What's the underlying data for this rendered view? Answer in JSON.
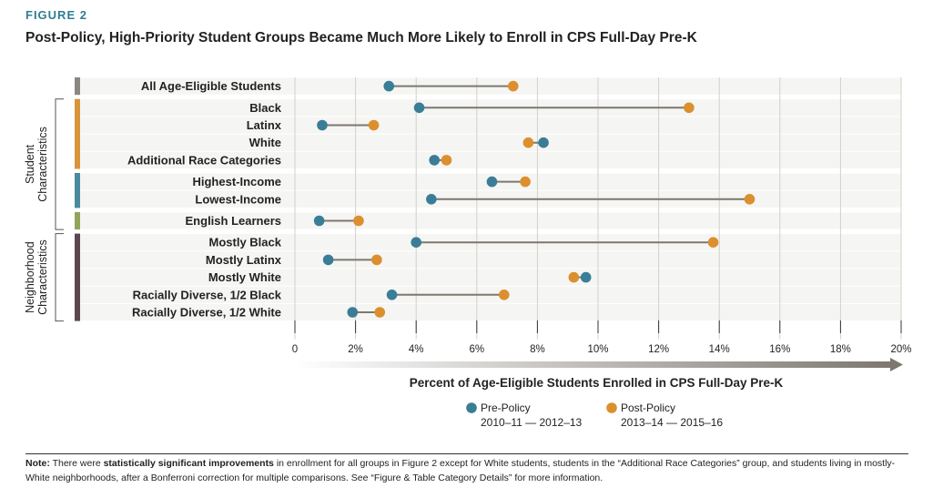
{
  "figure_label": "FIGURE 2",
  "title": "Post-Policy, High-Priority Student Groups Became Much More Likely to Enroll in CPS Full-Day Pre-K",
  "colors": {
    "pre": "#3a7d96",
    "post": "#dc8f2e",
    "connector": "#7d7770",
    "grid": "#d3d0ca",
    "band": "#f5f5f3"
  },
  "chart_data": {
    "type": "dumbbell",
    "xlabel": "Percent of Age-Eligible Students Enrolled in CPS Full-Day Pre-K",
    "xlim": [
      0,
      20
    ],
    "xticks": [
      "0",
      "2%",
      "4%",
      "6%",
      "8%",
      "10%",
      "12%",
      "14%",
      "16%",
      "18%",
      "20%"
    ],
    "grid": true,
    "legend": {
      "placement": "bottom",
      "items": [
        {
          "name": "Pre-Policy",
          "sub": "2010–11 — 2012–13"
        },
        {
          "name": "Post-Policy",
          "sub": "2013–14 — 2015–16"
        }
      ]
    },
    "groups": [
      {
        "label": "Student Characteristics",
        "segments": [
          1,
          2,
          3
        ]
      },
      {
        "label": "Neighborhood Characteristics",
        "segments": [
          4
        ]
      }
    ],
    "segments": [
      {
        "color": "#8c8580",
        "rows": [
          {
            "label": "All Age-Eligible Students",
            "pre": 3.1,
            "post": 7.2
          }
        ]
      },
      {
        "color": "#d9943a",
        "rows": [
          {
            "label": "Black",
            "pre": 4.1,
            "post": 13.0
          },
          {
            "label": "Latinx",
            "pre": 0.9,
            "post": 2.6
          },
          {
            "label": "White",
            "pre": 8.2,
            "post": 7.7
          },
          {
            "label": "Additional Race Categories",
            "pre": 4.6,
            "post": 5.0
          }
        ]
      },
      {
        "color": "#4a8aa0",
        "rows": [
          {
            "label": "Highest-Income",
            "pre": 6.5,
            "post": 7.6
          },
          {
            "label": "Lowest-Income",
            "pre": 4.5,
            "post": 15.0
          }
        ]
      },
      {
        "color": "#93a45a",
        "rows": [
          {
            "label": "English Learners",
            "pre": 0.8,
            "post": 2.1
          }
        ]
      },
      {
        "color": "#5e4650",
        "rows": [
          {
            "label": "Mostly Black",
            "pre": 4.0,
            "post": 13.8
          },
          {
            "label": "Mostly Latinx",
            "pre": 1.1,
            "post": 2.7
          },
          {
            "label": "Mostly White",
            "pre": 9.6,
            "post": 9.2
          },
          {
            "label": "Racially Diverse, 1/2 Black",
            "pre": 3.2,
            "post": 6.9
          },
          {
            "label": "Racially Diverse, 1/2 White",
            "pre": 1.9,
            "post": 2.8
          }
        ]
      }
    ]
  },
  "note": {
    "lead": "Note:",
    "t1": " There were ",
    "bold": "statistically significant improvements",
    "t2": " in enrollment for all groups in Figure 2 except for White students, students in the “Additional Race Categories” group, and students living in mostly-White neighborhoods, after a Bonferroni correction for multiple comparisons. See “Figure & Table Category Details” for more information."
  }
}
